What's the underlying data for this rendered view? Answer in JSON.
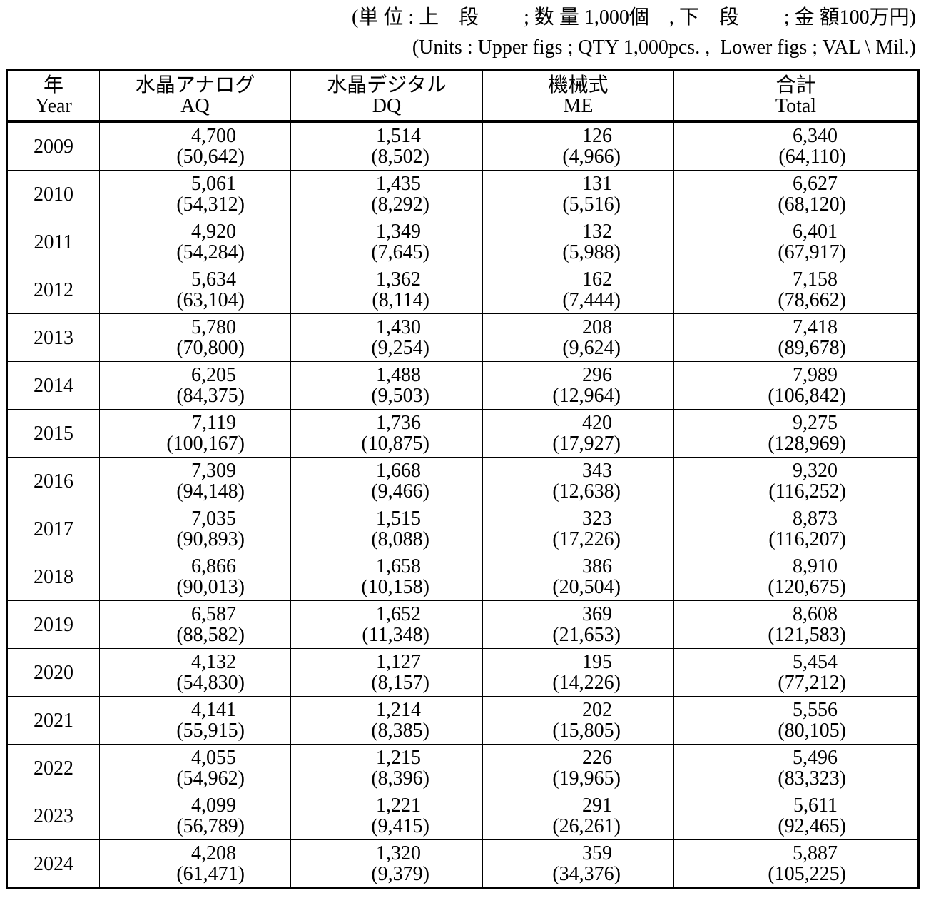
{
  "header": {
    "line1": "(単 位 : 上　段　　 ; 数 量 1,000個　, 下　段　　 ; 金 額100万円)",
    "line2": "(Units : Upper figs ; QTY 1,000pcs. ,  Lower figs ; VAL \\ Mil.)"
  },
  "table": {
    "columns": [
      {
        "jp": "年",
        "en": "Year"
      },
      {
        "jp": "水晶アナログ",
        "en": "AQ"
      },
      {
        "jp": "水晶デジタル",
        "en": "DQ"
      },
      {
        "jp": "機械式",
        "en": "ME"
      },
      {
        "jp": "合計",
        "en": "Total"
      }
    ],
    "rows": [
      {
        "year": "2009",
        "cells": [
          [
            "4,700",
            "(50,642)"
          ],
          [
            "1,514",
            "(8,502)"
          ],
          [
            "126",
            "(4,966)"
          ],
          [
            "6,340",
            "(64,110)"
          ]
        ]
      },
      {
        "year": "2010",
        "cells": [
          [
            "5,061",
            "(54,312)"
          ],
          [
            "1,435",
            "(8,292)"
          ],
          [
            "131",
            "(5,516)"
          ],
          [
            "6,627",
            "(68,120)"
          ]
        ]
      },
      {
        "year": "2011",
        "cells": [
          [
            "4,920",
            "(54,284)"
          ],
          [
            "1,349",
            "(7,645)"
          ],
          [
            "132",
            "(5,988)"
          ],
          [
            "6,401",
            "(67,917)"
          ]
        ]
      },
      {
        "year": "2012",
        "cells": [
          [
            "5,634",
            "(63,104)"
          ],
          [
            "1,362",
            "(8,114)"
          ],
          [
            "162",
            "(7,444)"
          ],
          [
            "7,158",
            "(78,662)"
          ]
        ]
      },
      {
        "year": "2013",
        "cells": [
          [
            "5,780",
            "(70,800)"
          ],
          [
            "1,430",
            "(9,254)"
          ],
          [
            "208",
            "(9,624)"
          ],
          [
            "7,418",
            "(89,678)"
          ]
        ]
      },
      {
        "year": "2014",
        "cells": [
          [
            "6,205",
            "(84,375)"
          ],
          [
            "1,488",
            "(9,503)"
          ],
          [
            "296",
            "(12,964)"
          ],
          [
            "7,989",
            "(106,842)"
          ]
        ]
      },
      {
        "year": "2015",
        "cells": [
          [
            "7,119",
            "(100,167)"
          ],
          [
            "1,736",
            "(10,875)"
          ],
          [
            "420",
            "(17,927)"
          ],
          [
            "9,275",
            "(128,969)"
          ]
        ]
      },
      {
        "year": "2016",
        "cells": [
          [
            "7,309",
            "(94,148)"
          ],
          [
            "1,668",
            "(9,466)"
          ],
          [
            "343",
            "(12,638)"
          ],
          [
            "9,320",
            "(116,252)"
          ]
        ]
      },
      {
        "year": "2017",
        "cells": [
          [
            "7,035",
            "(90,893)"
          ],
          [
            "1,515",
            "(8,088)"
          ],
          [
            "323",
            "(17,226)"
          ],
          [
            "8,873",
            "(116,207)"
          ]
        ]
      },
      {
        "year": "2018",
        "cells": [
          [
            "6,866",
            "(90,013)"
          ],
          [
            "1,658",
            "(10,158)"
          ],
          [
            "386",
            "(20,504)"
          ],
          [
            "8,910",
            "(120,675)"
          ]
        ]
      },
      {
        "year": "2019",
        "cells": [
          [
            "6,587",
            "(88,582)"
          ],
          [
            "1,652",
            "(11,348)"
          ],
          [
            "369",
            "(21,653)"
          ],
          [
            "8,608",
            "(121,583)"
          ]
        ]
      },
      {
        "year": "2020",
        "cells": [
          [
            "4,132",
            "(54,830)"
          ],
          [
            "1,127",
            "(8,157)"
          ],
          [
            "195",
            "(14,226)"
          ],
          [
            "5,454",
            "(77,212)"
          ]
        ]
      },
      {
        "year": "2021",
        "cells": [
          [
            "4,141",
            "(55,915)"
          ],
          [
            "1,214",
            "(8,385)"
          ],
          [
            "202",
            "(15,805)"
          ],
          [
            "5,556",
            "(80,105)"
          ]
        ]
      },
      {
        "year": "2022",
        "cells": [
          [
            "4,055",
            "(54,962)"
          ],
          [
            "1,215",
            "(8,396)"
          ],
          [
            "226",
            "(19,965)"
          ],
          [
            "5,496",
            "(83,323)"
          ]
        ]
      },
      {
        "year": "2023",
        "cells": [
          [
            "4,099",
            "(56,789)"
          ],
          [
            "1,221",
            "(9,415)"
          ],
          [
            "291",
            "(26,261)"
          ],
          [
            "5,611",
            "(92,465)"
          ]
        ]
      },
      {
        "year": "2024",
        "cells": [
          [
            "4,208",
            "(61,471)"
          ],
          [
            "1,320",
            "(9,379)"
          ],
          [
            "359",
            "(34,376)"
          ],
          [
            "5,887",
            "(105,225)"
          ]
        ]
      }
    ]
  }
}
